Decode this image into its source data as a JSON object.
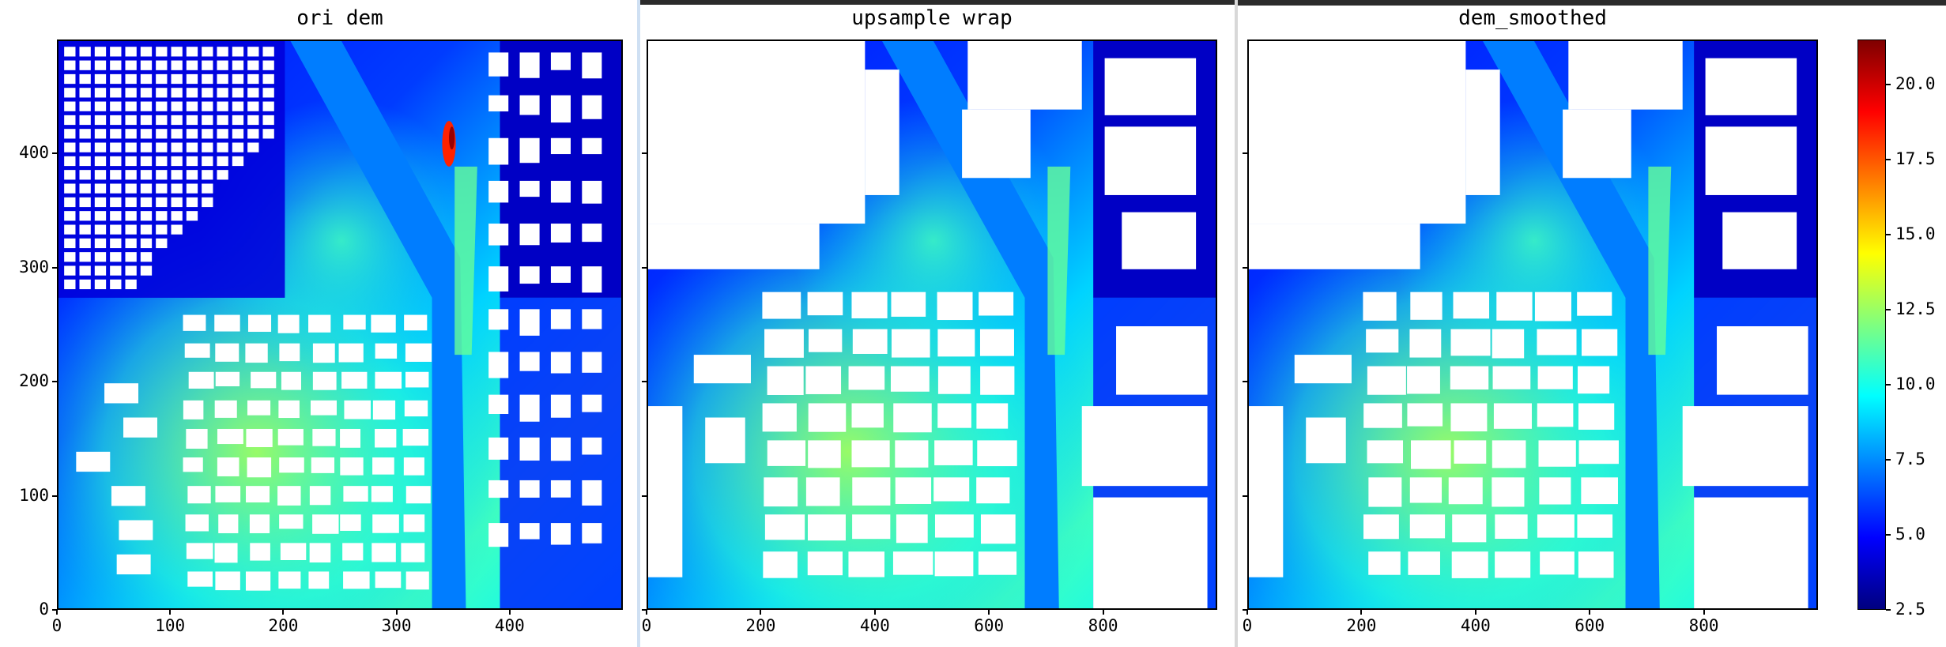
{
  "chart_data": [
    {
      "type": "heatmap",
      "title": "ori dem",
      "xlim": [
        0,
        500
      ],
      "ylim": [
        0,
        500
      ],
      "xticks": [
        "0",
        "100",
        "200",
        "300",
        "400"
      ],
      "yticks": [
        "0",
        "100",
        "200",
        "300",
        "400"
      ],
      "colormap": "jet",
      "value_range": [
        2.5,
        21.5
      ]
    },
    {
      "type": "heatmap",
      "title": "upsample wrap",
      "xlim": [
        0,
        1000
      ],
      "ylim": [
        0,
        1000
      ],
      "xticks": [
        "0",
        "200",
        "400",
        "600",
        "800"
      ],
      "yticks": [],
      "colormap": "jet",
      "value_range": [
        2.5,
        21.5
      ]
    },
    {
      "type": "heatmap",
      "title": "dem_smoothed",
      "xlim": [
        0,
        1000
      ],
      "ylim": [
        0,
        1000
      ],
      "xticks": [
        "0",
        "200",
        "400",
        "600",
        "800"
      ],
      "yticks": [],
      "colormap": "jet",
      "value_range": [
        2.5,
        21.5
      ]
    }
  ],
  "colorbar": {
    "ticks": [
      "2.5",
      "5.0",
      "7.5",
      "10.0",
      "12.5",
      "15.0",
      "17.5",
      "20.0"
    ],
    "tick_values": [
      2.5,
      5.0,
      7.5,
      10.0,
      12.5,
      15.0,
      17.5,
      20.0
    ],
    "min": 2.5,
    "max": 21.5,
    "colors": [
      "#00007f",
      "#0000ff",
      "#007fff",
      "#00ffff",
      "#7fff7f",
      "#ffff00",
      "#ff7f00",
      "#ff0000",
      "#7f0000"
    ]
  }
}
